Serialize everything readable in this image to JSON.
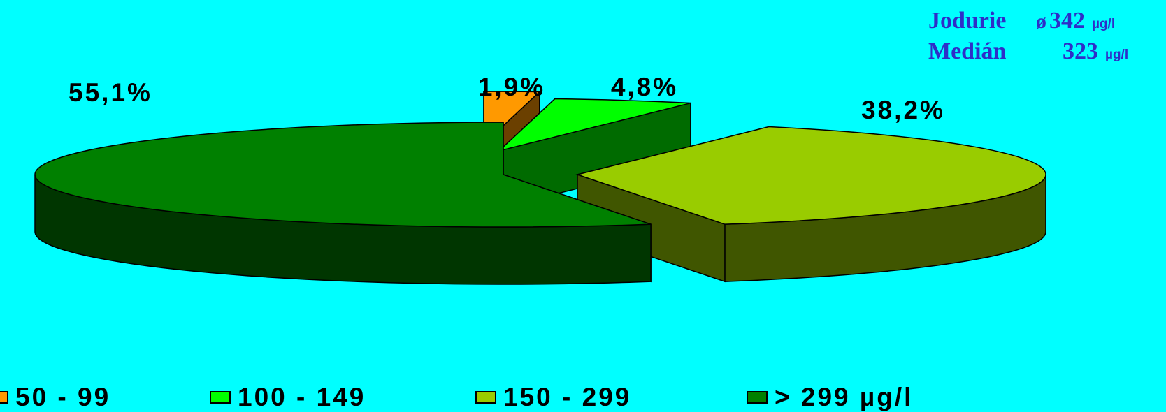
{
  "stats": {
    "rows": [
      {
        "name": "Jodurie",
        "symbol": "ø",
        "value": "342",
        "unit": "µg/l"
      },
      {
        "name": "Medián",
        "symbol": "",
        "value": "323",
        "unit": "µg/l"
      }
    ]
  },
  "chart_data": {
    "type": "pie",
    "style": "3d-exploded",
    "background": "#00FFFF",
    "legend_position": "bottom",
    "series": [
      {
        "name": "50 - 99",
        "value": 1.9,
        "label": "1,9%",
        "color": "#FF9900"
      },
      {
        "name": "100 - 149",
        "value": 4.8,
        "label": "4,8%",
        "color": "#00FF00"
      },
      {
        "name": "150 - 299",
        "value": 38.2,
        "label": "38,2%",
        "color": "#99CC00"
      },
      {
        "name": "> 299 µg/l",
        "value": 55.1,
        "label": "55,1%",
        "color": "#008000"
      }
    ]
  }
}
